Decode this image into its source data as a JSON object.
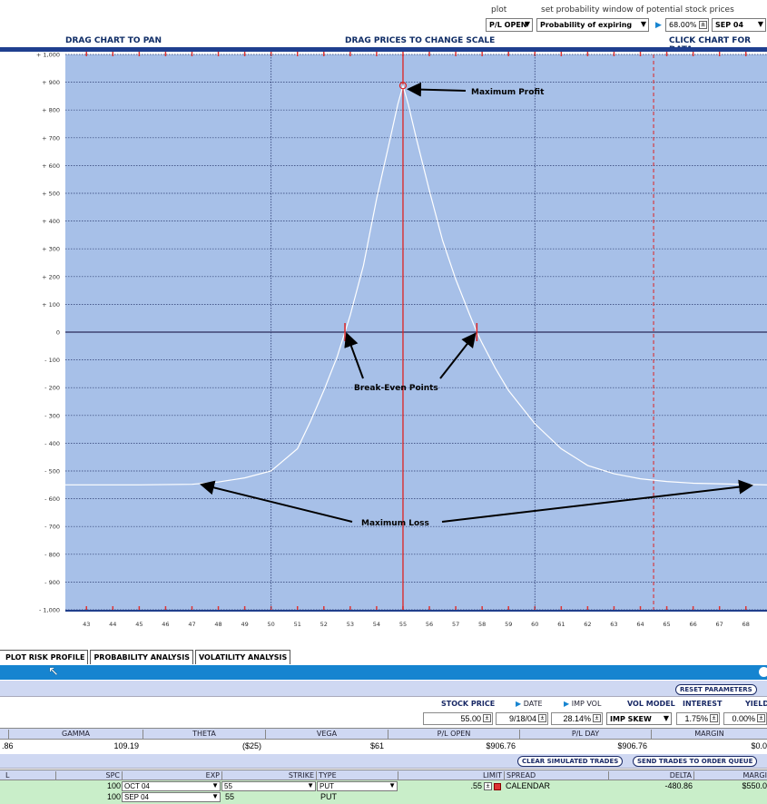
{
  "controls": {
    "plot_label": "plot",
    "prob_label": "set probability window of potential stock prices",
    "plot_select": "P/L OPEN",
    "prob_select": "Probability of expiring",
    "percent": "68.00%",
    "month": "SEP 04"
  },
  "chart_header": {
    "left": "DRAG CHART TO PAN",
    "center": "DRAG PRICES TO CHANGE SCALE",
    "right": "CLICK CHART FOR DATA"
  },
  "chart_data": {
    "type": "line",
    "x_ticks": [
      "43",
      "44",
      "45",
      "46",
      "47",
      "48",
      "49",
      "50",
      "51",
      "52",
      "53",
      "54",
      "55",
      "56",
      "57",
      "58",
      "59",
      "60",
      "61",
      "62",
      "63",
      "64",
      "65",
      "66",
      "67",
      "68"
    ],
    "y_ticks": [
      "+ 1,000",
      "+ 900",
      "+ 800",
      "+ 700",
      "+ 600",
      "+ 500",
      "+ 400",
      "+ 300",
      "+ 200",
      "+ 100",
      "0",
      "- 100",
      "- 200",
      "- 300",
      "- 400",
      "- 500",
      "- 600",
      "- 700",
      "- 800",
      "- 900",
      "- 1,000"
    ],
    "xlim": [
      42.2,
      68.8
    ],
    "ylim": [
      -1000,
      1000
    ],
    "series": [
      {
        "x": [
          42.2,
          45,
          47,
          48,
          49,
          50,
          51,
          51.5,
          52,
          52.5,
          52.8,
          53,
          53.5,
          54,
          54.5,
          54.8,
          55,
          55.2,
          55.5,
          56,
          56.5,
          57,
          57.5,
          57.8,
          58,
          58.5,
          59,
          60,
          61,
          62,
          63,
          64,
          65,
          66,
          68.8
        ],
        "y": [
          -550,
          -550,
          -548,
          -540,
          -525,
          -500,
          -420,
          -320,
          -210,
          -90,
          0,
          60,
          240,
          480,
          690,
          820,
          888,
          820,
          700,
          510,
          330,
          190,
          70,
          0,
          -40,
          -130,
          -210,
          -330,
          -420,
          -480,
          -510,
          -528,
          -538,
          -544,
          -550
        ]
      }
    ],
    "max_profit_point": {
      "x": 55,
      "y": 888
    },
    "break_even_points": [
      52.8,
      57.8
    ],
    "solid_vline_x": 55,
    "dashed_vlines_x": [
      50,
      60
    ],
    "red_dashed_vline_x": 64.5,
    "annotations": {
      "max_profit": "Maximum Profit",
      "break_even": "Break-Even Points",
      "max_loss": "Maximum Loss"
    },
    "grid": true
  },
  "tabs": [
    "PLOT RISK PROFILE",
    "PROBABILITY ANALYSIS",
    "VOLATILITY ANALYSIS"
  ],
  "params": {
    "reset_label": "RESET PARAMETERS",
    "stock_price_label": "STOCK PRICE",
    "date_label": "DATE",
    "imp_vol_label": "IMP VOL",
    "vol_model_label": "VOL MODEL",
    "interest_label": "INTEREST",
    "yield_label": "YIELD",
    "stock_price": "55.00",
    "date": "9/18/04",
    "imp_vol": "28.14%",
    "vol_model": "IMP SKEW",
    "interest": "1.75%",
    "yield": "0.00%"
  },
  "greeks": {
    "headers": [
      "GAMMA",
      "THETA",
      "VEGA",
      "P/L OPEN",
      "P/L DAY",
      "MARGIN"
    ],
    "delta_partial": ".86",
    "values": [
      "109.19",
      "($25)",
      "$61",
      "$906.76",
      "$906.76",
      "$0.0"
    ]
  },
  "trades": {
    "clear_label": "CLEAR SIMULATED TRADES",
    "send_label": "SEND TRADES TO ORDER QUEUE",
    "headers": {
      "l": "L",
      "spc": "SPC",
      "exp": "EXP",
      "strike": "STRIKE",
      "type": "TYPE",
      "limit": "LIMIT",
      "spread": "SPREAD",
      "delta": "DELTA",
      "margin": "MARGI"
    },
    "rows": [
      {
        "spc": "100",
        "exp": "OCT 04",
        "strike": "55",
        "type": "PUT",
        "limit": ".55",
        "spread": "CALENDAR",
        "delta": "-480.86",
        "margin": "$550.0"
      },
      {
        "spc": "100",
        "exp": "SEP 04",
        "strike": "55",
        "type": "PUT"
      }
    ]
  }
}
